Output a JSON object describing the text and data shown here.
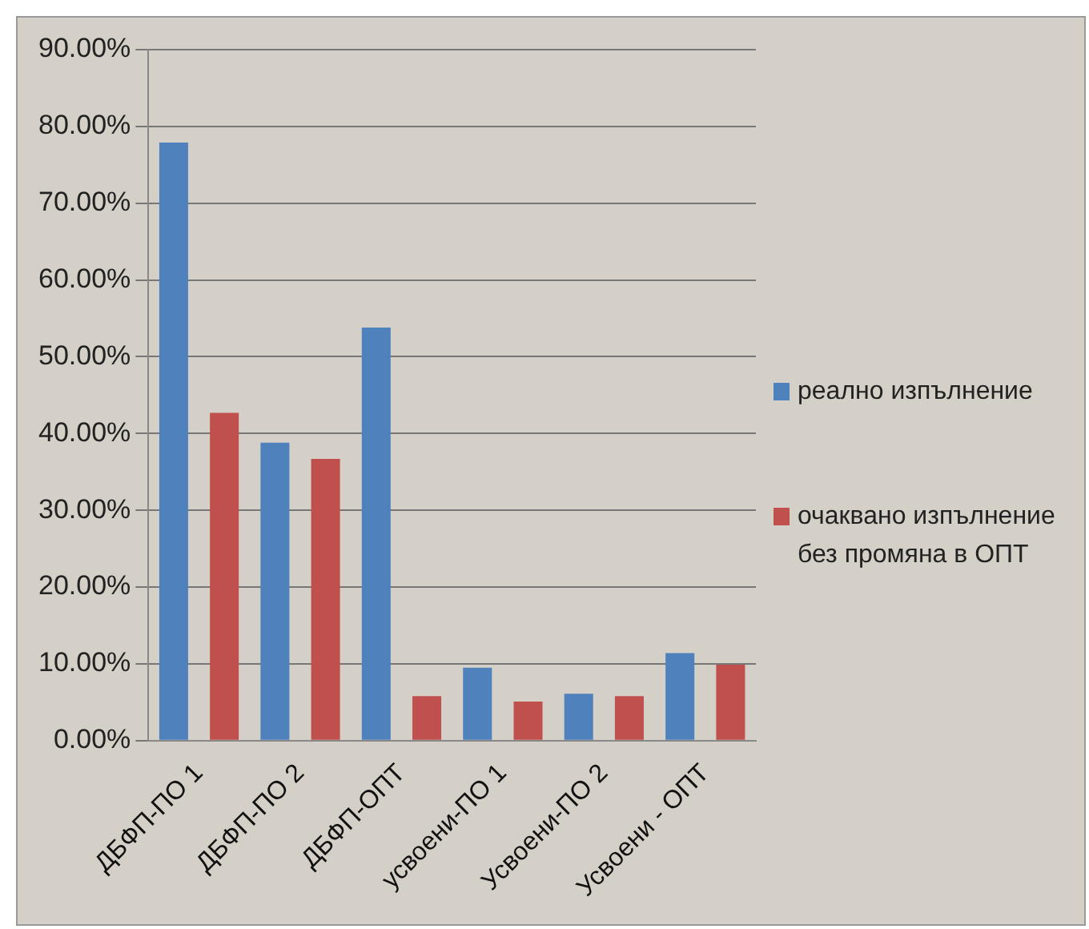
{
  "chart_data": {
    "type": "bar",
    "categories": [
      "ДБФП-ПО 1",
      "ДБФП-ПО 2",
      "ДБФП-ОПТ",
      "усвоени-ПО 1",
      "Усвоени-ПО 2",
      "Усвоени - ОПТ"
    ],
    "series": [
      {
        "name": "реално изпълнение",
        "color": "#4f81bd",
        "values": [
          77.9,
          38.8,
          53.8,
          9.5,
          6.1,
          11.4
        ]
      },
      {
        "name": "очаквано изпълнение без промяна в ОПТ",
        "color": "#c0504d",
        "values": [
          42.7,
          36.7,
          5.8,
          5.1,
          5.8,
          9.9
        ]
      }
    ],
    "ylim": [
      0,
      90
    ],
    "yticks": [
      {
        "value": 0,
        "label": "0.00%"
      },
      {
        "value": 10,
        "label": "10.00%"
      },
      {
        "value": 20,
        "label": "20.00%"
      },
      {
        "value": 30,
        "label": "30.00%"
      },
      {
        "value": 40,
        "label": "40.00%"
      },
      {
        "value": 50,
        "label": "50.00%"
      },
      {
        "value": 60,
        "label": "60.00%"
      },
      {
        "value": 70,
        "label": "70.00%"
      },
      {
        "value": 80,
        "label": "80.00%"
      },
      {
        "value": 90,
        "label": "90.00%"
      }
    ],
    "grid": "y",
    "legend": "right"
  }
}
